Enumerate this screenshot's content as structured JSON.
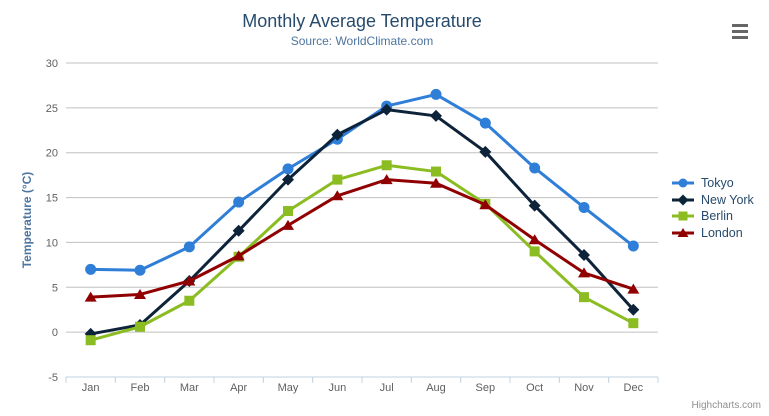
{
  "chart_data": {
    "type": "line",
    "title": "Monthly Average Temperature",
    "subtitle": "Source: WorldClimate.com",
    "xlabel": "",
    "ylabel": "Temperature (°C)",
    "ylim": [
      -5,
      30
    ],
    "yticks": [
      -5,
      0,
      5,
      10,
      15,
      20,
      25,
      30
    ],
    "grid": true,
    "legend_position": "right",
    "categories": [
      "Jan",
      "Feb",
      "Mar",
      "Apr",
      "May",
      "Jun",
      "Jul",
      "Aug",
      "Sep",
      "Oct",
      "Nov",
      "Dec"
    ],
    "series": [
      {
        "name": "Tokyo",
        "marker": "circle",
        "color": "#2f7ed8",
        "values": [
          7.0,
          6.9,
          9.5,
          14.5,
          18.2,
          21.5,
          25.2,
          26.5,
          23.3,
          18.3,
          13.9,
          9.6
        ]
      },
      {
        "name": "New York",
        "marker": "diamond",
        "color": "#0d233a",
        "values": [
          -0.2,
          0.8,
          5.7,
          11.3,
          17.0,
          22.0,
          24.8,
          24.1,
          20.1,
          14.1,
          8.6,
          2.5
        ]
      },
      {
        "name": "Berlin",
        "marker": "square",
        "color": "#8bbc21",
        "values": [
          -0.9,
          0.6,
          3.5,
          8.4,
          13.5,
          17.0,
          18.6,
          17.9,
          14.3,
          9.0,
          3.9,
          1.0
        ]
      },
      {
        "name": "London",
        "marker": "triangle",
        "color": "#910000",
        "values": [
          3.9,
          4.2,
          5.7,
          8.5,
          11.9,
          15.2,
          17.0,
          16.6,
          14.2,
          10.3,
          6.6,
          4.8
        ]
      }
    ]
  },
  "credits": {
    "label": "Highcharts.com"
  },
  "export_menu": {
    "icon": "hamburger-icon"
  },
  "theme": {
    "title_color": "#274b6d",
    "subtitle_color": "#4d759e",
    "axis_label_color": "#606060",
    "axis_title_color": "#4d759e",
    "legend_text_color": "#274b6d",
    "grid_color": "#c0c0c0",
    "axis_line_color": "#c0d0e0",
    "credits_color": "#909090",
    "menu_icon_color": "#666666",
    "background": "#ffffff"
  }
}
